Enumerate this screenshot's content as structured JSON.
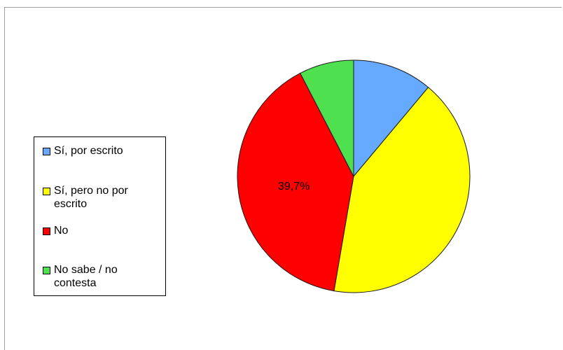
{
  "chart_data": {
    "type": "pie",
    "title": "",
    "series": [
      {
        "name": "",
        "categories": [
          "Sí, por escrito",
          "Sí, pero no por escrito",
          "No",
          "No sabe / no contesta"
        ],
        "values": [
          11.1,
          41.6,
          39.7,
          7.6
        ],
        "colors": [
          "#66aaff",
          "#ffff00",
          "#ff0000",
          "#4ee04e"
        ],
        "data_labels": [
          "",
          "",
          "39,7%",
          ""
        ]
      }
    ],
    "legend": {
      "placement": "left",
      "items": [
        {
          "label": "Sí, por escrito",
          "color": "#66aaff"
        },
        {
          "label": "Sí, pero no por\nescrito",
          "color": "#ffff00"
        },
        {
          "label": "No",
          "color": "#ff0000"
        },
        {
          "label": "No sabe / no\ncontesta",
          "color": "#4ee04e"
        }
      ]
    }
  }
}
